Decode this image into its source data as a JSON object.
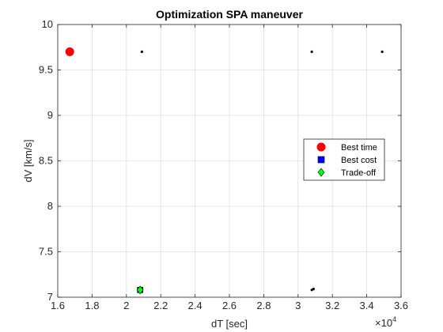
{
  "chart_data": {
    "type": "scatter",
    "title": "Optimization SPA maneuver",
    "xlabel": "dT [sec]",
    "ylabel": "dV [km/s]",
    "x_multiplier_label": "×10",
    "x_multiplier_exponent": "4",
    "xlim": [
      1.6,
      3.6
    ],
    "ylim": [
      7,
      10
    ],
    "x_ticks": [
      1.6,
      1.8,
      2.0,
      2.2,
      2.4,
      2.6,
      2.8,
      3.0,
      3.2,
      3.4,
      3.6
    ],
    "x_tick_labels": [
      "1.6",
      "1.8",
      "2",
      "2.2",
      "2.4",
      "2.6",
      "2.8",
      "3",
      "3.2",
      "3.4",
      "3.6"
    ],
    "y_ticks": [
      7,
      7.5,
      8,
      8.5,
      9,
      9.5,
      10
    ],
    "y_tick_labels": [
      "7",
      "7.5",
      "8",
      "8.5",
      "9",
      "9.5",
      "10"
    ],
    "grid": true,
    "legend_position": "right",
    "points": [
      {
        "x": 2.09,
        "y": 9.7
      },
      {
        "x": 3.08,
        "y": 9.7
      },
      {
        "x": 3.49,
        "y": 9.7
      },
      {
        "x": 2.08,
        "y": 7.08
      },
      {
        "x": 3.08,
        "y": 7.08
      },
      {
        "x": 3.09,
        "y": 7.09
      }
    ],
    "series": [
      {
        "name": "Best time",
        "marker": "circle",
        "color": "#ff0000",
        "x": [
          1.67
        ],
        "y": [
          9.7
        ]
      },
      {
        "name": "Best cost",
        "marker": "square",
        "color": "#0000ff",
        "x": [
          2.08
        ],
        "y": [
          7.08
        ]
      },
      {
        "name": "Trade-off",
        "marker": "diamond",
        "color": "#00ff00",
        "x": [
          2.08
        ],
        "y": [
          7.08
        ]
      }
    ]
  }
}
